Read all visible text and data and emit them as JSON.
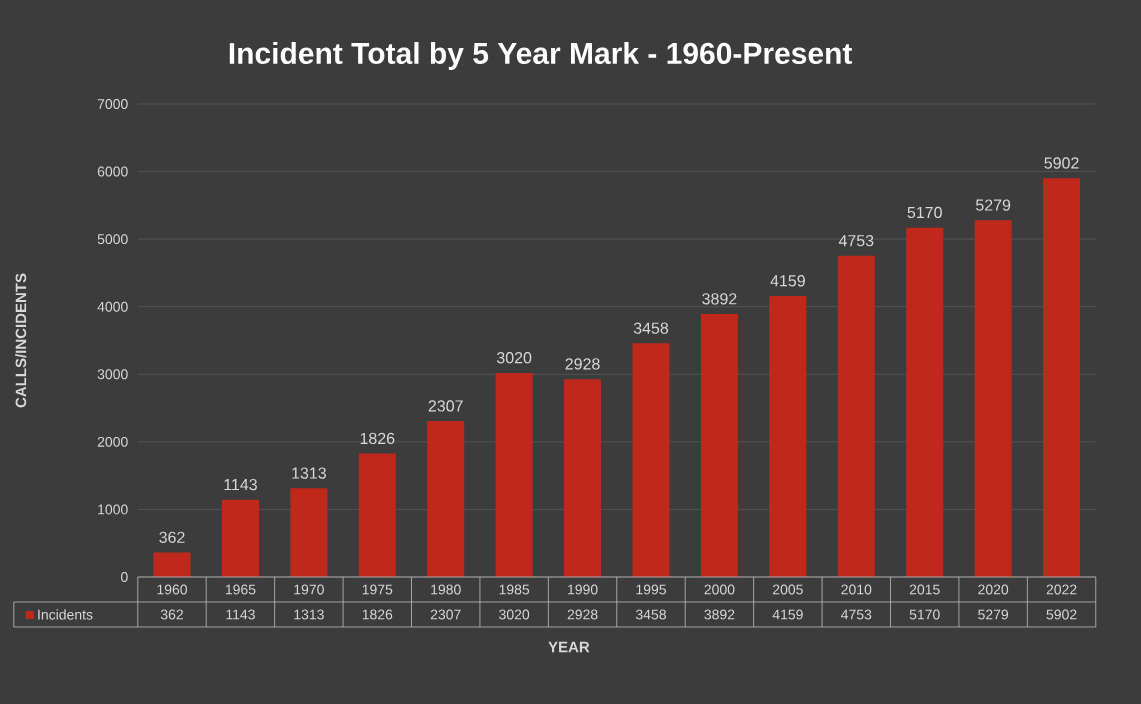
{
  "chart_data": {
    "type": "bar",
    "title": "Incident Total by 5 Year Mark - 1960-Present",
    "xlabel": "YEAR",
    "ylabel": "CALLS/INCIDENTS",
    "categories": [
      "1960",
      "1965",
      "1970",
      "1975",
      "1980",
      "1985",
      "1990",
      "1995",
      "2000",
      "2005",
      "2010",
      "2015",
      "2020",
      "2022"
    ],
    "series": [
      {
        "name": "Incidents",
        "color": "#c0281c",
        "values": [
          362,
          1143,
          1313,
          1826,
          2307,
          3020,
          2928,
          3458,
          3892,
          4159,
          4753,
          5170,
          5279,
          5902
        ],
        "value_labels": [
          "362",
          "1143",
          "1313",
          "1826",
          "2307",
          "3020",
          "2928",
          "3458",
          "3892",
          "4159",
          "4753",
          "5170",
          "5279",
          "5902"
        ]
      }
    ],
    "annotations": [
      "362",
      "1143",
      "1313",
      "1826",
      "2307",
      "3020",
      "2928",
      "3458",
      "3892",
      "4159",
      "4753",
      "5170",
      "5279",
      "5902"
    ],
    "ylim": [
      0,
      7000
    ],
    "yticks": [
      0,
      1000,
      2000,
      3000,
      4000,
      5000,
      6000,
      7000
    ],
    "grid": "y",
    "legend": "bottom left"
  }
}
